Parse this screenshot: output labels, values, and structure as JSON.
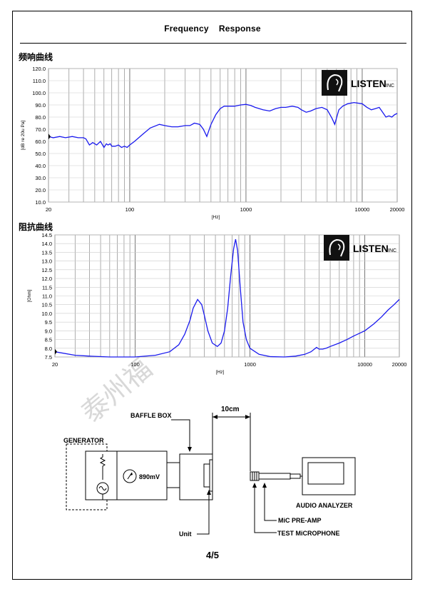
{
  "document": {
    "title": "Frequency    Response",
    "page_number": "4/5",
    "watermark": "泰州福"
  },
  "sections": {
    "freq_label": "频响曲线",
    "imp_label": "阻抗曲线"
  },
  "logo": {
    "brand": "LISTEN",
    "suffix": "INC"
  },
  "chart_data": [
    {
      "type": "line",
      "ylabel": "[dB re 20u Pa]",
      "xlabel": "[Hz]",
      "xscale": "log",
      "xlim": [
        20,
        20000
      ],
      "ylim": [
        10,
        120
      ],
      "yticks": [
        "120.0",
        "110.0",
        "100.0",
        "90.0",
        "80.0",
        "70.0",
        "60.0",
        "50.0",
        "40.0",
        "30.0",
        "20.0",
        "10.0"
      ],
      "xticks": [
        "20",
        "100",
        "1000",
        "10000",
        "20000"
      ],
      "color": "#1a1aee",
      "x": [
        20,
        22,
        25,
        28,
        32,
        36,
        40,
        42,
        45,
        48,
        52,
        56,
        60,
        63,
        65,
        68,
        70,
        75,
        80,
        85,
        90,
        95,
        100,
        110,
        130,
        150,
        180,
        200,
        230,
        260,
        300,
        330,
        360,
        400,
        430,
        460,
        500,
        550,
        600,
        650,
        700,
        800,
        900,
        1000,
        1100,
        1200,
        1400,
        1600,
        1800,
        2000,
        2200,
        2500,
        2800,
        3000,
        3300,
        3600,
        4000,
        4500,
        5000,
        5500,
        5800,
        6000,
        6300,
        6800,
        7500,
        8500,
        10000,
        11000,
        12000,
        13000,
        14000,
        15000,
        16000,
        17000,
        18000,
        19000,
        20000
      ],
      "y": [
        64,
        63,
        64,
        63,
        64,
        63,
        63,
        62,
        57,
        59,
        57,
        60,
        55,
        58,
        57,
        58,
        56,
        56,
        57,
        55,
        56,
        55,
        57,
        60,
        66,
        71,
        74,
        73,
        72,
        72,
        73,
        73,
        75,
        74,
        70,
        64,
        74,
        82,
        87,
        89,
        89,
        89,
        90,
        90.5,
        89.5,
        88,
        86,
        85,
        87,
        88,
        88,
        89,
        88,
        86,
        84,
        85,
        87,
        88,
        86,
        79,
        74,
        79,
        86,
        89,
        91,
        92,
        91,
        88,
        86,
        87,
        88,
        84,
        80,
        81,
        80,
        82,
        83
      ],
      "grid": true
    },
    {
      "type": "line",
      "ylabel": "[Ohm]",
      "xlabel": "[Hz]",
      "xscale": "log",
      "xlim": [
        20,
        20000
      ],
      "ylim": [
        7.5,
        14.5
      ],
      "yticks": [
        "14.5",
        "14.0",
        "13.5",
        "13.0",
        "12.5",
        "12.0",
        "11.5",
        "11.0",
        "10.5",
        "10.0",
        "9.5",
        "9.0",
        "8.5",
        "8.0",
        "7.5"
      ],
      "xticks": [
        "20",
        "100",
        "1000",
        "10000",
        "20000"
      ],
      "color": "#1a1aee",
      "x": [
        20,
        30,
        40,
        60,
        100,
        150,
        200,
        240,
        270,
        300,
        320,
        350,
        380,
        400,
        430,
        470,
        520,
        560,
        600,
        640,
        680,
        720,
        750,
        780,
        820,
        870,
        930,
        1000,
        1200,
        1500,
        2000,
        2500,
        3000,
        3400,
        3800,
        4000,
        4300,
        4600,
        5000,
        6000,
        7000,
        8000,
        10000,
        12000,
        14000,
        16000,
        18000,
        20000
      ],
      "y": [
        7.8,
        7.6,
        7.55,
        7.5,
        7.5,
        7.6,
        7.8,
        8.2,
        8.8,
        9.6,
        10.3,
        10.8,
        10.5,
        9.9,
        9.0,
        8.3,
        8.1,
        8.3,
        9.0,
        10.3,
        12.2,
        13.7,
        14.25,
        13.6,
        11.6,
        9.5,
        8.5,
        8.0,
        7.65,
        7.52,
        7.5,
        7.55,
        7.65,
        7.8,
        8.05,
        7.95,
        7.95,
        8.0,
        8.1,
        8.3,
        8.5,
        8.7,
        9.0,
        9.4,
        9.8,
        10.2,
        10.5,
        10.8
      ],
      "grid": true
    }
  ],
  "diagram": {
    "generator": "GENERATOR",
    "baffle_box": "BAFFLE BOX",
    "distance": "10cm",
    "voltage": "890mV",
    "unit": "Unit",
    "audio_analyzer": "AUDIO ANALYZER",
    "mic_preamp": "MiC PRE-AMP",
    "test_mic": "TEST MiCROPHONE"
  }
}
